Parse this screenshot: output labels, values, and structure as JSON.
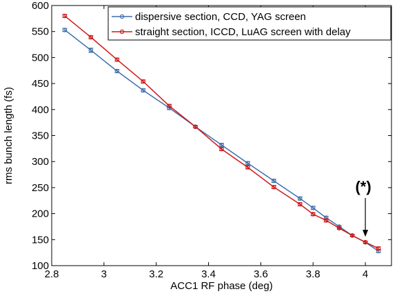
{
  "chart_data": {
    "type": "line",
    "xlabel": "ACC1 RF phase (deg)",
    "ylabel": "rms bunch length (fs)",
    "xlim": [
      2.8,
      4.1
    ],
    "ylim": [
      100,
      600
    ],
    "xticks": [
      2.8,
      3,
      3.2,
      3.4,
      3.6,
      3.8,
      4
    ],
    "yticks": [
      100,
      150,
      200,
      250,
      300,
      350,
      400,
      450,
      500,
      550,
      600
    ],
    "xtick_labels": [
      "2.8",
      "3",
      "3.2",
      "3.4",
      "3.6",
      "3.8",
      "4"
    ],
    "ytick_labels": [
      "100",
      "150",
      "200",
      "250",
      "300",
      "350",
      "400",
      "450",
      "500",
      "550",
      "600"
    ],
    "grid": false,
    "legend_position": "top-right",
    "series": [
      {
        "name": "dispersive section, CCD, YAG screen",
        "color": "#3f6fad",
        "x": [
          2.85,
          2.95,
          3.05,
          3.15,
          3.25,
          3.35,
          3.45,
          3.55,
          3.65,
          3.75,
          3.8,
          3.85,
          3.9,
          3.95,
          4.0,
          4.05
        ],
        "y": [
          553,
          514,
          474,
          437,
          403,
          367,
          332,
          297,
          263,
          229,
          211,
          192,
          175,
          158,
          145,
          128
        ],
        "err": [
          3,
          4,
          3,
          3,
          3,
          2,
          3,
          3,
          3,
          3,
          3,
          3,
          2,
          2,
          2,
          3
        ]
      },
      {
        "name": "straight section, ICCD, LuAG screen with delay",
        "color": "#d01818",
        "x": [
          2.85,
          2.95,
          3.05,
          3.15,
          3.25,
          3.35,
          3.45,
          3.55,
          3.65,
          3.75,
          3.8,
          3.85,
          3.9,
          3.95,
          4.0,
          4.05
        ],
        "y": [
          580,
          539,
          496,
          454,
          407,
          367,
          324,
          289,
          251,
          218,
          199,
          187,
          172,
          158,
          145,
          133
        ],
        "err": [
          3,
          3,
          3,
          3,
          3,
          2,
          3,
          3,
          3,
          3,
          3,
          3,
          2,
          2,
          2,
          3
        ]
      }
    ],
    "annotations": [
      {
        "text": "(*)",
        "x": 4.0,
        "y": 145
      }
    ]
  }
}
